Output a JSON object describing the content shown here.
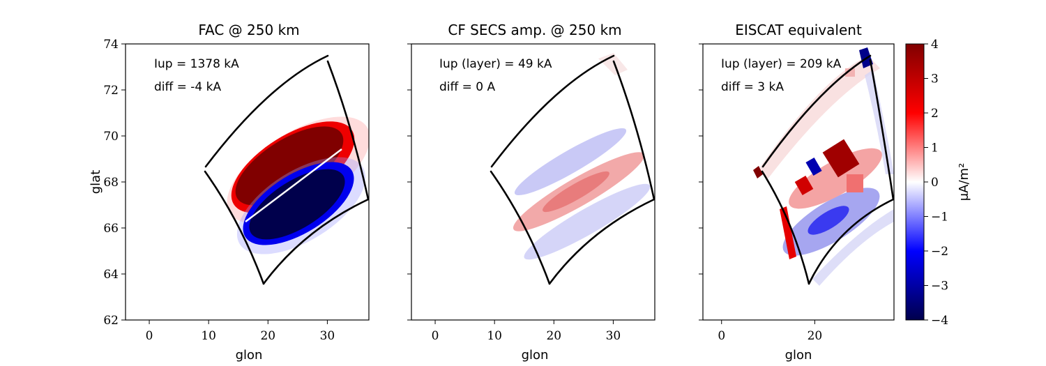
{
  "chart_data": [
    {
      "type": "heatmap",
      "title": "FAC @ 250 km",
      "xlabel": "glon",
      "ylabel": "glat",
      "xlim": [
        -4,
        37
      ],
      "ylim": [
        62,
        74
      ],
      "x_ticks": [
        "0",
        "10",
        "20",
        "30"
      ],
      "x_tick_values": [
        0,
        10,
        20,
        30
      ],
      "y_ticks": [
        "62",
        "64",
        "66",
        "68",
        "70",
        "72",
        "74"
      ],
      "y_tick_values": [
        62,
        64,
        66,
        68,
        70,
        72,
        74
      ],
      "annotations": [
        "Iup = 1378 kA",
        "diff = -4 kA"
      ]
    },
    {
      "type": "heatmap",
      "title": "CF SECS amp. @ 250 km",
      "xlabel": "glon",
      "xlim": [
        -4,
        37
      ],
      "ylim": [
        62,
        74
      ],
      "x_ticks": [
        "0",
        "10",
        "20",
        "30"
      ],
      "x_tick_values": [
        0,
        10,
        20,
        30
      ],
      "annotations": [
        "Iup (layer) = 49 kA",
        "diff = 0 A"
      ]
    },
    {
      "type": "heatmap",
      "title": "EISCAT equivalent",
      "xlabel": "glon",
      "xlim": [
        -4,
        37
      ],
      "ylim": [
        62,
        74
      ],
      "x_ticks": [
        "0",
        "20"
      ],
      "x_tick_values": [
        0,
        20
      ],
      "annotations": [
        "Iup (layer) = 209 kA",
        "diff = 3 kA"
      ]
    }
  ],
  "colorbar": {
    "label": "μA/m²",
    "range": [
      -4,
      4
    ],
    "colormap": "seismic",
    "ticks": [
      "4",
      "3",
      "2",
      "1",
      "0",
      "−1",
      "−2",
      "−3",
      "−4"
    ],
    "tick_values": [
      4,
      3,
      2,
      1,
      0,
      -1,
      -2,
      -3,
      -4
    ]
  },
  "colors": {
    "positive": "#800000",
    "negative": "#000080",
    "zero": "#ffffff",
    "outline": "#000000"
  }
}
